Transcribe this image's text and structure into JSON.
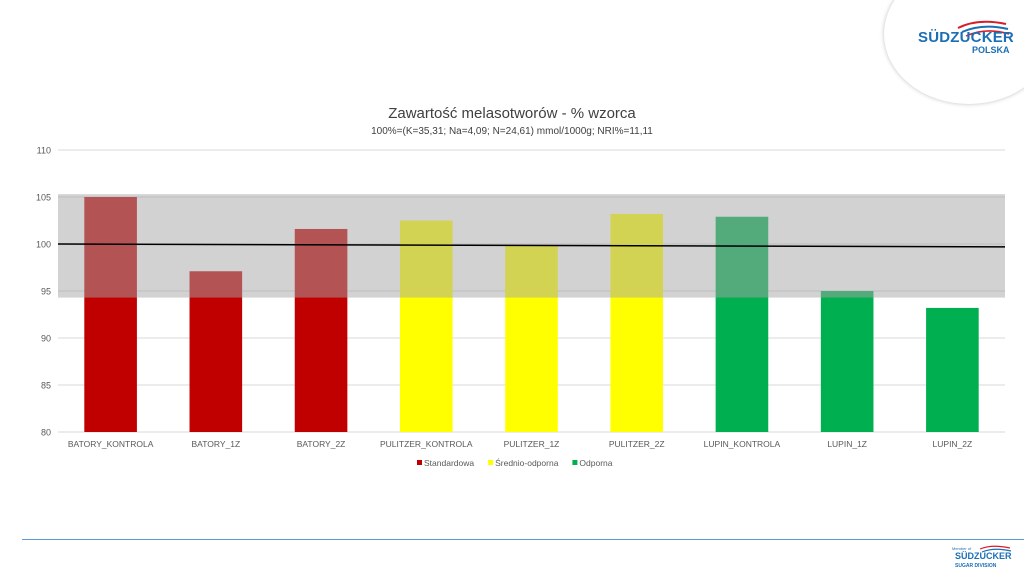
{
  "logo": {
    "brand": "SÜDZUCKER",
    "sub": "POLSKA"
  },
  "footer_logo": {
    "pre": "Member of",
    "brand": "SÜDZUCKER",
    "division": "SUGAR DIVISION"
  },
  "chart_data": {
    "type": "bar",
    "title": "Zawartość melasotworów - % wzorca",
    "subtitle": "100%=(K=35,31; Na=4,09; N=24,61) mmol/1000g; NRI%=11,11",
    "categories": [
      "BATORY_KONTROLA",
      "BATORY_1Z",
      "BATORY_2Z",
      "PULITZER_KONTROLA",
      "PULITZER_1Z",
      "PULITZER_2Z",
      "LUPIN_KONTROLA",
      "LUPIN_1Z",
      "LUPIN_2Z"
    ],
    "values": [
      105.0,
      97.1,
      101.6,
      102.5,
      99.8,
      103.2,
      102.9,
      95.0,
      93.2
    ],
    "groups": [
      "Standardowa",
      "Standardowa",
      "Standardowa",
      "Średnio-odporna",
      "Średnio-odporna",
      "Średnio-odporna",
      "Odporna",
      "Odporna",
      "Odporna"
    ],
    "legend": [
      {
        "name": "Standardowa",
        "color": "#c00000"
      },
      {
        "name": "Średnio-odporna",
        "color": "#ffff00"
      },
      {
        "name": "Odporna",
        "color": "#00b050"
      }
    ],
    "reference_band": {
      "from": 94.3,
      "to": 105.3,
      "color": "#a6a6a6"
    },
    "reference_line": {
      "start": 100.0,
      "end": 99.7,
      "color": "#000000"
    },
    "ylim": [
      80,
      110
    ],
    "yticks": [
      80,
      85,
      90,
      95,
      100,
      105,
      110
    ],
    "grid": true,
    "legend_position": "bottom"
  }
}
